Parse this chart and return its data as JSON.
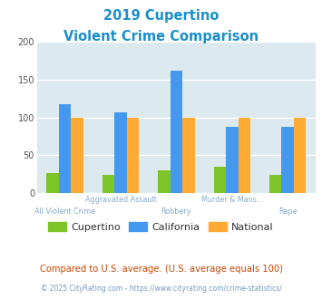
{
  "title_line1": "2019 Cupertino",
  "title_line2": "Violent Crime Comparison",
  "title_color": "#1a8fcc",
  "cupertino": [
    26,
    24,
    30,
    35,
    24
  ],
  "california": [
    118,
    107,
    162,
    87,
    88
  ],
  "national": [
    100,
    100,
    100,
    100,
    100
  ],
  "colors": {
    "cupertino": "#7dc42a",
    "california": "#4499ee",
    "national": "#ffaa33"
  },
  "ylim": [
    0,
    200
  ],
  "yticks": [
    0,
    50,
    100,
    150,
    200
  ],
  "bg_color": "#dce9ef",
  "fig_bg": "#ffffff",
  "grid_color": "#ffffff",
  "top_labels": [
    "",
    "Aggravated Assault",
    "",
    "Murder & Mans...",
    ""
  ],
  "bottom_labels": [
    "All Violent Crime",
    "",
    "Robbery",
    "",
    "Rape"
  ],
  "label_color": "#88aacc",
  "footnote1": "Compared to U.S. average. (U.S. average equals 100)",
  "footnote2": "© 2025 CityRating.com - https://www.cityrating.com/crime-statistics/",
  "footnote1_color": "#cc4400",
  "footnote2_color": "#7799bb",
  "legend_labels": [
    "Cupertino",
    "California",
    "National"
  ]
}
